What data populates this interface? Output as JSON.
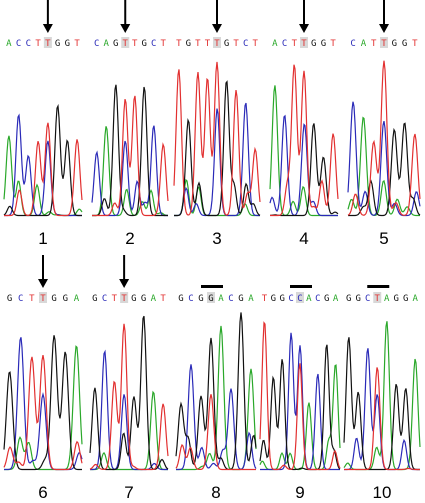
{
  "colors": {
    "A": "#2aa82a",
    "C": "#2a2ab8",
    "G": "#111111",
    "T": "#e23030",
    "highlight": "#d8d8d8",
    "marker": "#000000"
  },
  "panels": [
    {
      "number": "1",
      "sequence": [
        "A",
        "C",
        "C",
        "T",
        "T",
        "G",
        "G",
        "T"
      ],
      "marker": "arrow",
      "marked": [
        4
      ]
    },
    {
      "number": "2",
      "sequence": [
        "C",
        "A",
        "G",
        "T",
        "T",
        "G",
        "C",
        "T"
      ],
      "marker": "arrow",
      "marked": [
        3
      ]
    },
    {
      "number": "3",
      "sequence": [
        "T",
        "G",
        "T",
        "T",
        "T",
        "G",
        "T",
        "C",
        "T"
      ],
      "marker": "arrow",
      "marked": [
        4
      ]
    },
    {
      "number": "4",
      "sequence": [
        "A",
        "C",
        "T",
        "T",
        "G",
        "G",
        "T"
      ],
      "marker": "arrow",
      "marked": [
        3
      ]
    },
    {
      "number": "5",
      "sequence": [
        "C",
        "A",
        "T",
        "T",
        "G",
        "G",
        "T"
      ],
      "marker": "arrow",
      "marked": [
        3
      ]
    },
    {
      "number": "6",
      "sequence": [
        "G",
        "C",
        "T",
        "T",
        "G",
        "G",
        "A"
      ],
      "marker": "arrow",
      "marked": [
        3
      ]
    },
    {
      "number": "7",
      "sequence": [
        "G",
        "C",
        "T",
        "T",
        "G",
        "G",
        "A",
        "T"
      ],
      "marker": "arrow",
      "marked": [
        3
      ]
    },
    {
      "number": "8",
      "sequence": [
        "G",
        "C",
        "G",
        "G",
        "A",
        "C",
        "G",
        "A"
      ],
      "marker": "bar",
      "marked": [
        3
      ]
    },
    {
      "number": "9",
      "sequence": [
        "T",
        "G",
        "G",
        "C",
        "C",
        "A",
        "C",
        "G",
        "A"
      ],
      "marker": "bar",
      "marked": [
        4
      ]
    },
    {
      "number": "10",
      "sequence": [
        "G",
        "G",
        "C",
        "T",
        "A",
        "G",
        "G",
        "A"
      ],
      "marker": "bar",
      "marked": [
        3
      ]
    }
  ]
}
